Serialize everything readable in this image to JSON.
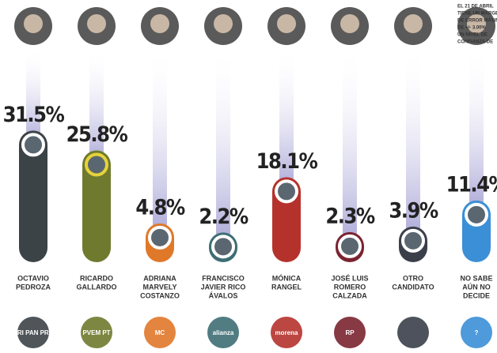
{
  "chart_data": {
    "type": "bar",
    "categories": [
      [
        "OCTAVIO",
        "PEDROZA"
      ],
      [
        "RICARDO",
        "GALLARDO"
      ],
      [
        "ADRIANA",
        "MARVELY",
        "COSTANZO"
      ],
      [
        "FRANCISCO",
        "JAVIER RICO",
        "ÁVALOS"
      ],
      [
        "MÓNICA",
        "RANGEL"
      ],
      [
        "JOSÉ LUIS",
        "ROMERO",
        "CALZADA"
      ],
      [
        "OTRO",
        "CANDIDATO"
      ],
      [
        "NO SABE",
        "AÚN NO",
        "DECIDE"
      ]
    ],
    "values": [
      31.5,
      25.8,
      4.8,
      2.2,
      18.1,
      2.3,
      3.9,
      11.4
    ],
    "value_labels": [
      "31.5%",
      "25.8%",
      "4.8%",
      "2.2%",
      "18.1%",
      "2.3%",
      "3.9%",
      "11.4%"
    ],
    "colors": [
      "#3c4347",
      "#6f7a2e",
      "#e0782a",
      "#3d6e74",
      "#b5322c",
      "#7a2330",
      "#3a3f4a",
      "#3b8fd6"
    ],
    "ylim": [
      0,
      35
    ],
    "logos": [
      "PRI PAN PRD",
      "PVEM PT",
      "MC",
      "alianza",
      "morena",
      "RP",
      "",
      "?"
    ],
    "note": [
      "EL 21 DE ABRIL",
      "TIENE UN MARGEN",
      "DE ERROR MÁXIMO",
      "DE +/- 3.00%",
      "UN NIVEL DE",
      "CONFIANZA DE"
    ]
  }
}
